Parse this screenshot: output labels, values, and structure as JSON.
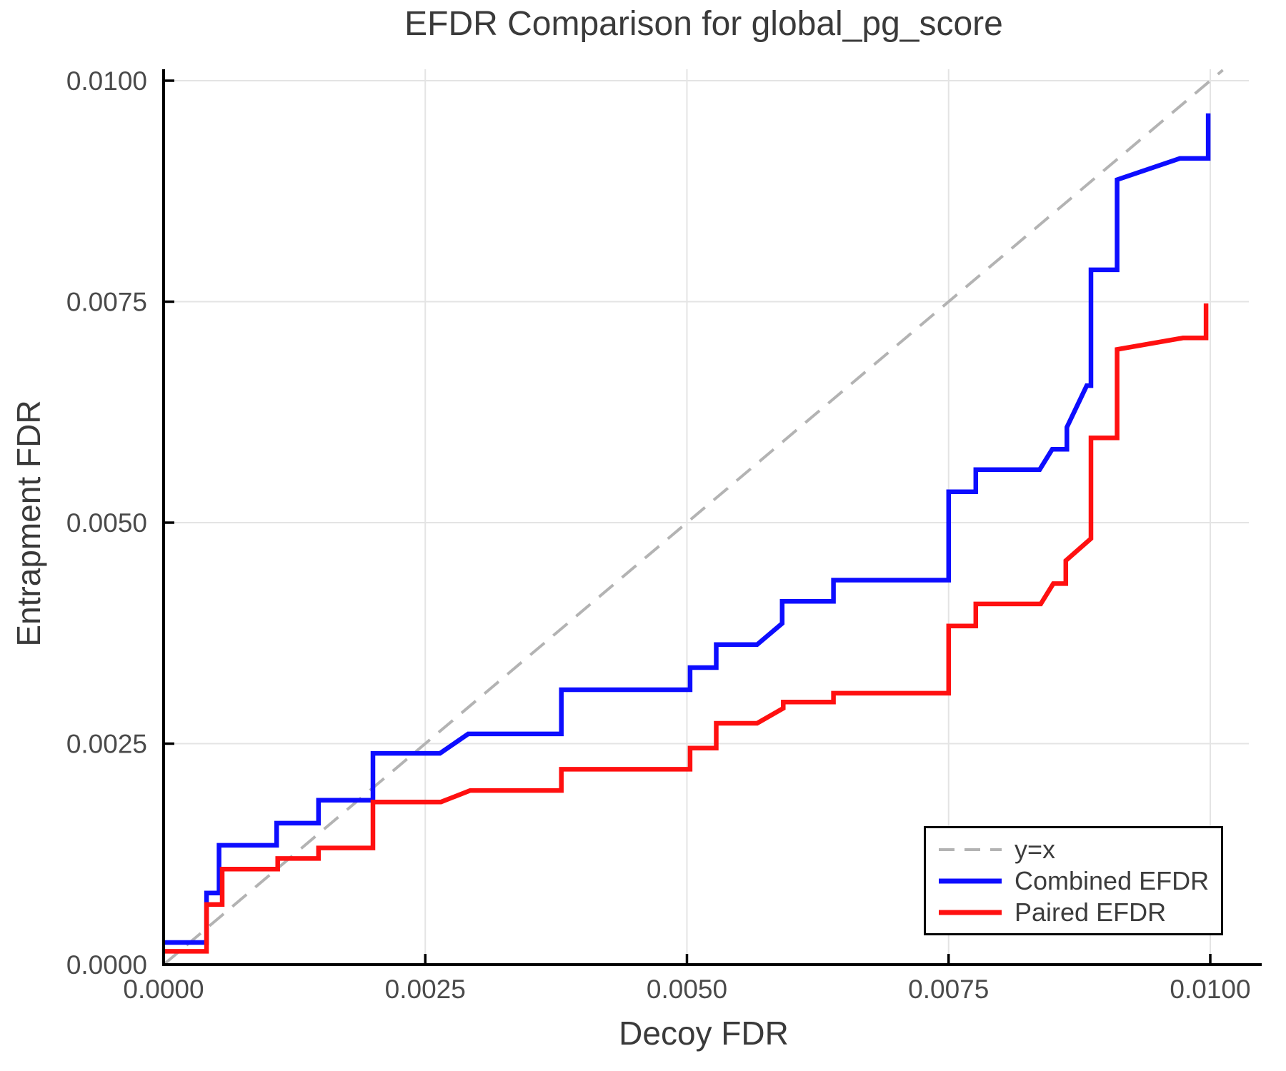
{
  "chart_data": {
    "type": "line",
    "title": "EFDR Comparison for global_pg_score",
    "xlabel": "Decoy FDR",
    "ylabel": "Entrapment FDR",
    "xlim": [
      0.0,
      0.0103
    ],
    "ylim": [
      0.0,
      0.0101
    ],
    "grid": true,
    "grid_color": "#e4e4e4",
    "axis_color": "#000000",
    "tick_label_color": "#4a4a4a",
    "text_color": "#3a3a3a",
    "background": "#ffffff",
    "legend_position": "bottom-right",
    "x_ticks": {
      "values": [
        0.0,
        0.0025,
        0.005,
        0.0075,
        0.01
      ],
      "labels": [
        "0.0000",
        "0.0025",
        "0.0050",
        "0.0075",
        "0.0100"
      ]
    },
    "y_ticks": {
      "values": [
        0.0,
        0.0025,
        0.005,
        0.0075,
        0.01
      ],
      "labels": [
        "0.0000",
        "0.0025",
        "0.0050",
        "0.0075",
        "0.0100"
      ]
    },
    "identity_line": {
      "label": "y=x",
      "color": "#b3b3b3",
      "style": "dashed",
      "from": [
        0.0,
        0.0
      ],
      "to": [
        0.01012,
        0.01012
      ]
    },
    "series": [
      {
        "name": "Combined EFDR",
        "color": "#0d0dff",
        "points": [
          [
            0.0,
            0.00025
          ],
          [
            0.00041,
            0.00025
          ],
          [
            0.00041,
            0.00081
          ],
          [
            0.00053,
            0.00081
          ],
          [
            0.00053,
            0.00135
          ],
          [
            0.00108,
            0.00135
          ],
          [
            0.00108,
            0.0016
          ],
          [
            0.00148,
            0.0016
          ],
          [
            0.00148,
            0.00186
          ],
          [
            0.002,
            0.00186
          ],
          [
            0.002,
            0.00239
          ],
          [
            0.00264,
            0.00239
          ],
          [
            0.00291,
            0.00261
          ],
          [
            0.0038,
            0.00261
          ],
          [
            0.0038,
            0.00311
          ],
          [
            0.00503,
            0.00311
          ],
          [
            0.00503,
            0.00336
          ],
          [
            0.00528,
            0.00336
          ],
          [
            0.00528,
            0.00362
          ],
          [
            0.00567,
            0.00362
          ],
          [
            0.00591,
            0.00386
          ],
          [
            0.00591,
            0.00411
          ],
          [
            0.0064,
            0.00411
          ],
          [
            0.0064,
            0.00435
          ],
          [
            0.0075,
            0.00435
          ],
          [
            0.0075,
            0.00535
          ],
          [
            0.00776,
            0.00535
          ],
          [
            0.00776,
            0.0056
          ],
          [
            0.00837,
            0.0056
          ],
          [
            0.00849,
            0.00583
          ],
          [
            0.00863,
            0.00583
          ],
          [
            0.00863,
            0.00608
          ],
          [
            0.00882,
            0.00655
          ],
          [
            0.00886,
            0.00655
          ],
          [
            0.00886,
            0.00786
          ],
          [
            0.00911,
            0.00786
          ],
          [
            0.00911,
            0.00888
          ],
          [
            0.00971,
            0.00912
          ],
          [
            0.00998,
            0.00912
          ],
          [
            0.00998,
            0.00963
          ]
        ]
      },
      {
        "name": "Paired EFDR",
        "color": "#ff1010",
        "points": [
          [
            0.0,
            0.00015
          ],
          [
            0.00041,
            0.00015
          ],
          [
            0.00041,
            0.00068
          ],
          [
            0.00056,
            0.00068
          ],
          [
            0.00056,
            0.00108
          ],
          [
            0.00109,
            0.00108
          ],
          [
            0.00109,
            0.0012
          ],
          [
            0.00148,
            0.0012
          ],
          [
            0.00148,
            0.00132
          ],
          [
            0.002,
            0.00132
          ],
          [
            0.002,
            0.00184
          ],
          [
            0.00265,
            0.00184
          ],
          [
            0.00293,
            0.00197
          ],
          [
            0.0038,
            0.00197
          ],
          [
            0.0038,
            0.00221
          ],
          [
            0.00503,
            0.00221
          ],
          [
            0.00503,
            0.00245
          ],
          [
            0.00528,
            0.00245
          ],
          [
            0.00528,
            0.00273
          ],
          [
            0.00567,
            0.00273
          ],
          [
            0.00592,
            0.0029
          ],
          [
            0.00592,
            0.00297
          ],
          [
            0.0064,
            0.00297
          ],
          [
            0.0064,
            0.00307
          ],
          [
            0.0075,
            0.00307
          ],
          [
            0.0075,
            0.00383
          ],
          [
            0.00776,
            0.00383
          ],
          [
            0.00776,
            0.00408
          ],
          [
            0.00838,
            0.00408
          ],
          [
            0.0085,
            0.00431
          ],
          [
            0.00862,
            0.00431
          ],
          [
            0.00862,
            0.00457
          ],
          [
            0.00886,
            0.00482
          ],
          [
            0.00886,
            0.00596
          ],
          [
            0.00911,
            0.00596
          ],
          [
            0.00911,
            0.00696
          ],
          [
            0.00974,
            0.00709
          ],
          [
            0.00996,
            0.00709
          ],
          [
            0.00996,
            0.00748
          ]
        ]
      }
    ]
  }
}
